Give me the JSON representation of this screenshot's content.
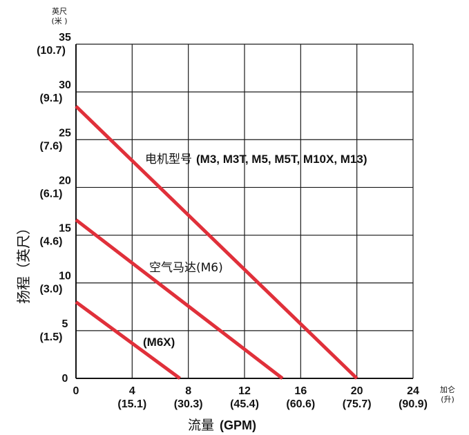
{
  "chart_data": {
    "type": "line",
    "ylabel": "扬程（英尺）",
    "y_unit": {
      "line1": "英尺",
      "line2": "(米 )"
    },
    "x_unit": {
      "line1": "加仑",
      "line2": "(升)"
    },
    "xlabel": {
      "main": "流量",
      "paren": "(GPM)"
    },
    "xlim": [
      0,
      24
    ],
    "ylim": [
      0,
      35
    ],
    "grid": true,
    "x_ticks": [
      {
        "value": 0,
        "label": "0",
        "sub": ""
      },
      {
        "value": 4,
        "label": "4",
        "sub": "(15.1)"
      },
      {
        "value": 8,
        "label": "8",
        "sub": "(30.3)"
      },
      {
        "value": 12,
        "label": "12",
        "sub": "(45.4)"
      },
      {
        "value": 16,
        "label": "16",
        "sub": "(60.6)"
      },
      {
        "value": 20,
        "label": "20",
        "sub": "(75.7)"
      },
      {
        "value": 24,
        "label": "24",
        "sub": "(90.9)"
      }
    ],
    "y_ticks": [
      {
        "value": 0,
        "label": "0",
        "sub": ""
      },
      {
        "value": 5,
        "label": "5",
        "sub": "(1.5)"
      },
      {
        "value": 10,
        "label": "10",
        "sub": "(3.0)"
      },
      {
        "value": 15,
        "label": "15",
        "sub": "(4.6)"
      },
      {
        "value": 20,
        "label": "20",
        "sub": "(6.1)"
      },
      {
        "value": 25,
        "label": "25",
        "sub": "(7.6)"
      },
      {
        "value": 30,
        "label": "30",
        "sub": "(9.1)"
      },
      {
        "value": 35,
        "label": "35",
        "sub": "(10.7)"
      }
    ],
    "series": [
      {
        "label_main": "电机型号",
        "label_models": "(M3, M3T, M5, M5T, M10X, M13)",
        "x": [
          0,
          20.0
        ],
        "y": [
          28.5,
          0
        ]
      },
      {
        "label_main": "空气马达",
        "label_models": "(M6)",
        "x": [
          0,
          14.7
        ],
        "y": [
          16.6,
          0
        ]
      },
      {
        "label_main": "",
        "label_models": "(M6X)",
        "x": [
          0,
          7.4
        ],
        "y": [
          8.0,
          0
        ]
      }
    ],
    "colors": {
      "line": "#e0303a",
      "grid": "#1a1a1a",
      "axis": "#111111"
    }
  }
}
